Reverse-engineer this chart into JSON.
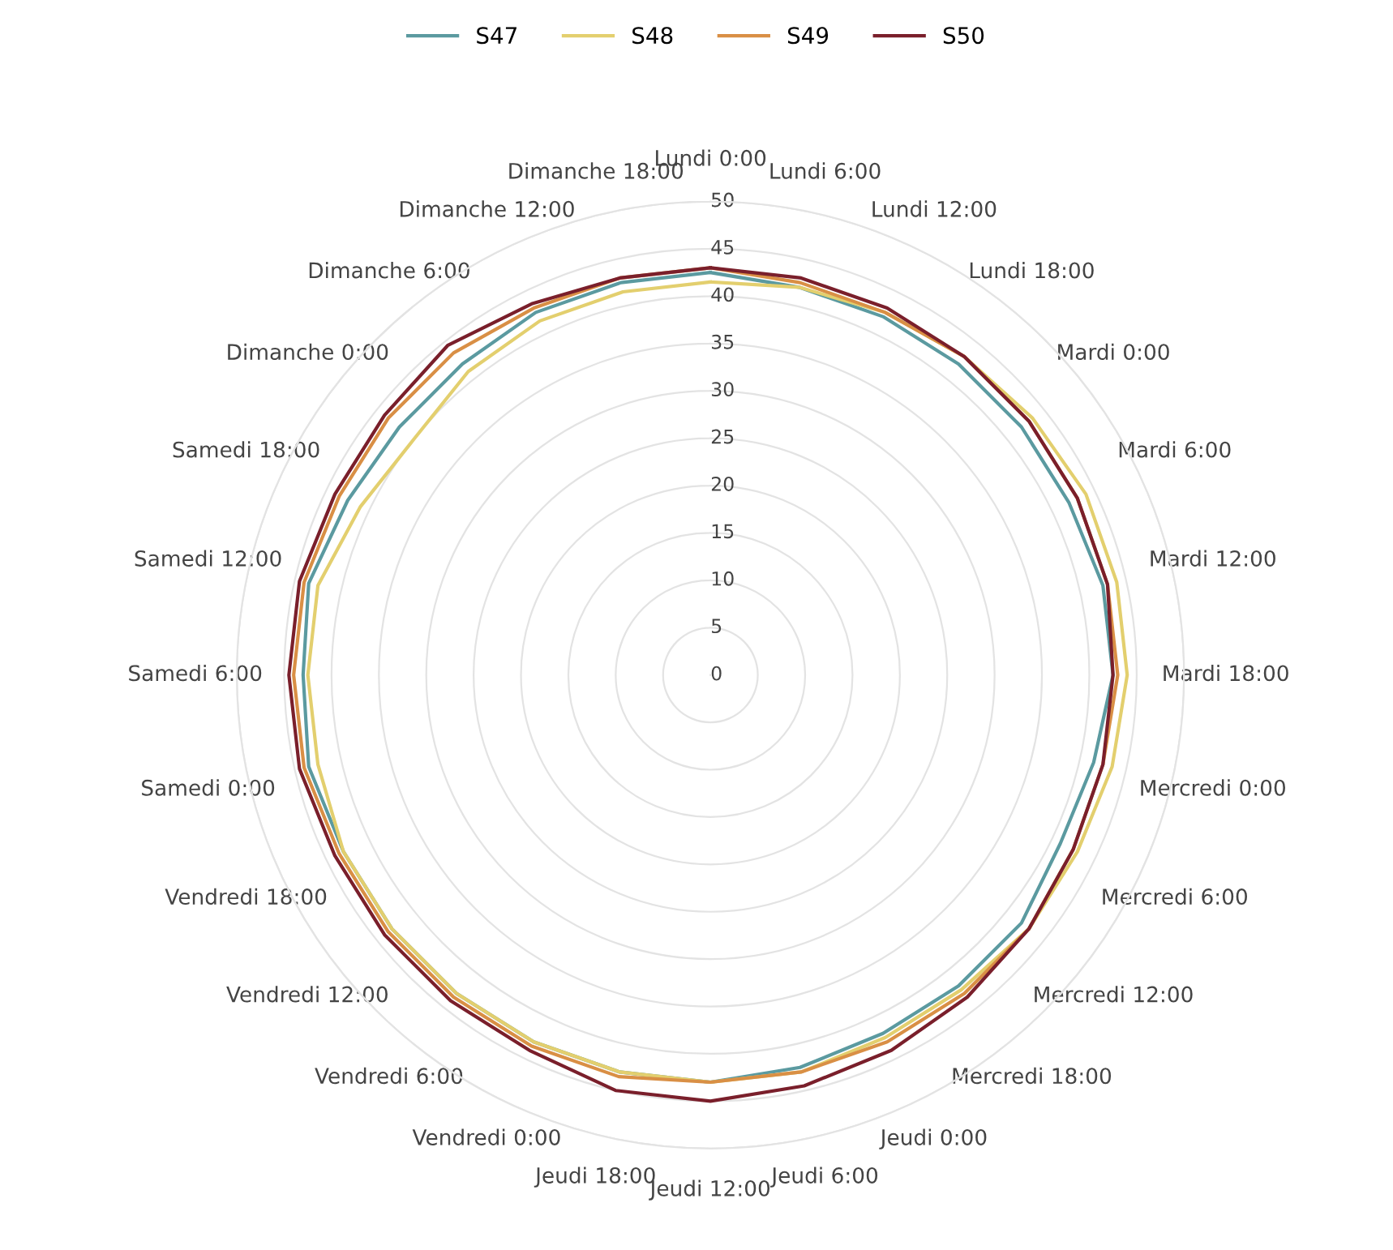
{
  "chart_data": {
    "type": "radar",
    "categories": [
      "Lundi 0:00",
      "Lundi 6:00",
      "Lundi 12:00",
      "Lundi 18:00",
      "Mardi 0:00",
      "Mardi 6:00",
      "Mardi 12:00",
      "Mardi 18:00",
      "Mercredi 0:00",
      "Mercredi 6:00",
      "Mercredi 12:00",
      "Mercredi 18:00",
      "Jeudi 0:00",
      "Jeudi 6:00",
      "Jeudi 12:00",
      "Jeudi 18:00",
      "Vendredi 0:00",
      "Vendredi 6:00",
      "Vendredi 12:00",
      "Vendredi 18:00",
      "Samedi 0:00",
      "Samedi 6:00",
      "Samedi 12:00",
      "Samedi 18:00",
      "Dimanche 0:00",
      "Dimanche 6:00",
      "Dimanche 12:00",
      "Dimanche 18:00"
    ],
    "series": [
      {
        "name": "S47",
        "color": "#5b9aa0",
        "values": [
          42.5,
          42,
          42,
          42,
          42,
          42,
          42.5,
          42.5,
          41.5,
          41,
          42,
          42,
          42,
          42.5,
          43,
          43,
          43,
          43,
          43,
          43,
          43.5,
          43,
          43.5,
          42.5,
          42,
          42,
          42.5,
          42.5
        ]
      },
      {
        "name": "S48",
        "color": "#e3cf6e",
        "values": [
          41.5,
          42,
          42.5,
          43,
          43.5,
          44,
          44,
          44,
          43.5,
          43,
          43,
          42.5,
          42.5,
          43,
          43,
          43,
          43,
          43,
          43,
          43,
          42.5,
          42.5,
          42.5,
          41,
          40,
          41,
          41.5,
          41.5
        ]
      },
      {
        "name": "S49",
        "color": "#d98f45",
        "values": [
          43,
          42.5,
          42.5,
          43,
          43,
          43,
          43,
          43,
          42.5,
          42.5,
          43,
          43,
          43,
          43,
          43,
          43.5,
          43.5,
          43.5,
          43.5,
          43.5,
          44,
          44,
          44,
          43.5,
          43.5,
          43.5,
          43,
          43
        ]
      },
      {
        "name": "S50",
        "color": "#7a1f2b",
        "values": [
          43,
          43,
          43,
          43,
          43,
          43,
          43,
          42.5,
          42.5,
          42.5,
          43,
          43.5,
          44,
          44.5,
          45,
          45,
          44,
          44,
          44,
          44,
          44.5,
          44.5,
          44.5,
          44,
          44,
          44.5,
          43.5,
          43
        ]
      }
    ],
    "ylim": [
      0,
      50
    ],
    "yticks": [
      0,
      5,
      10,
      15,
      20,
      25,
      30,
      35,
      40,
      45,
      50
    ],
    "grid": "y",
    "legend": "top",
    "marker": "none",
    "line_style": "solid"
  }
}
